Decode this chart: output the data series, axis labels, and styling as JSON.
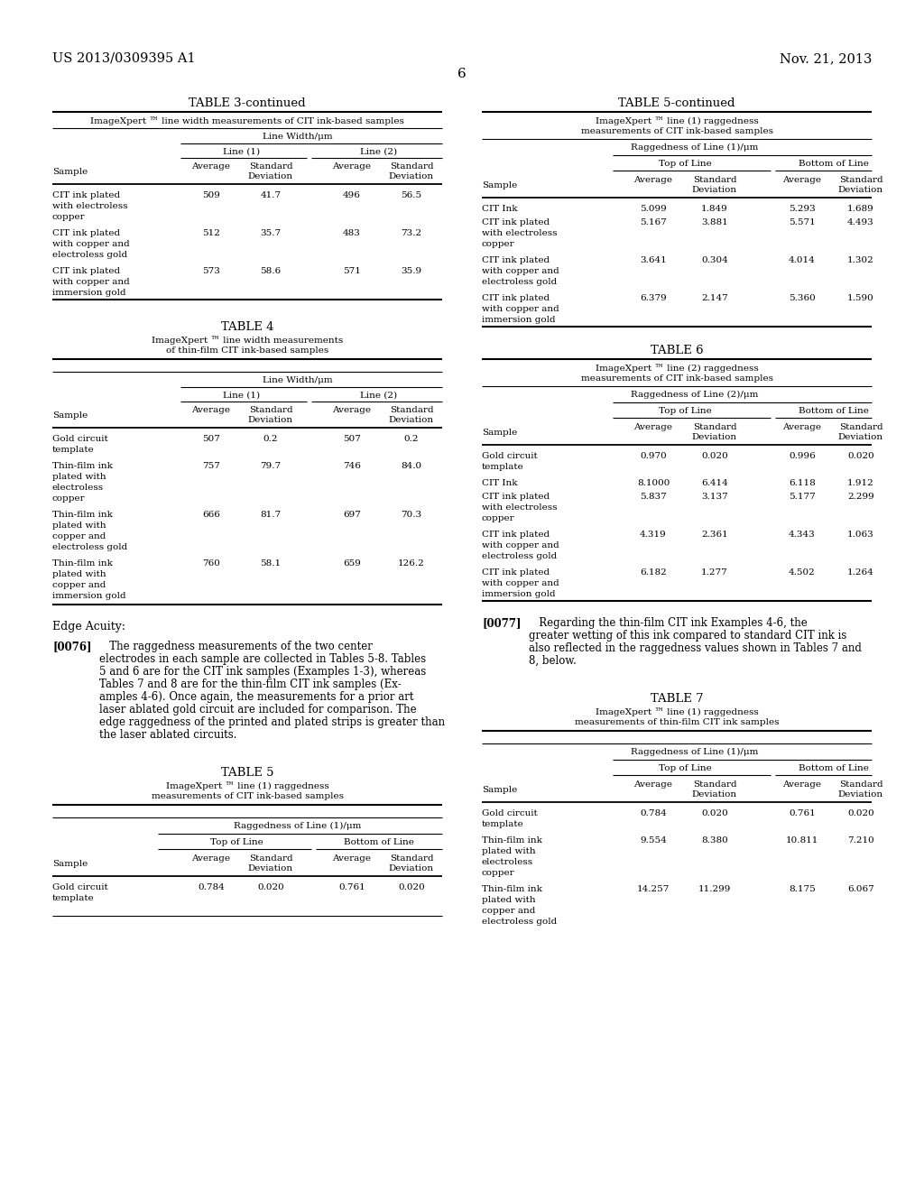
{
  "header_left": "US 2013/0309395 A1",
  "header_right": "Nov. 21, 2013",
  "page_number": "6",
  "bg_color": "#ffffff",
  "text_color": "#000000"
}
